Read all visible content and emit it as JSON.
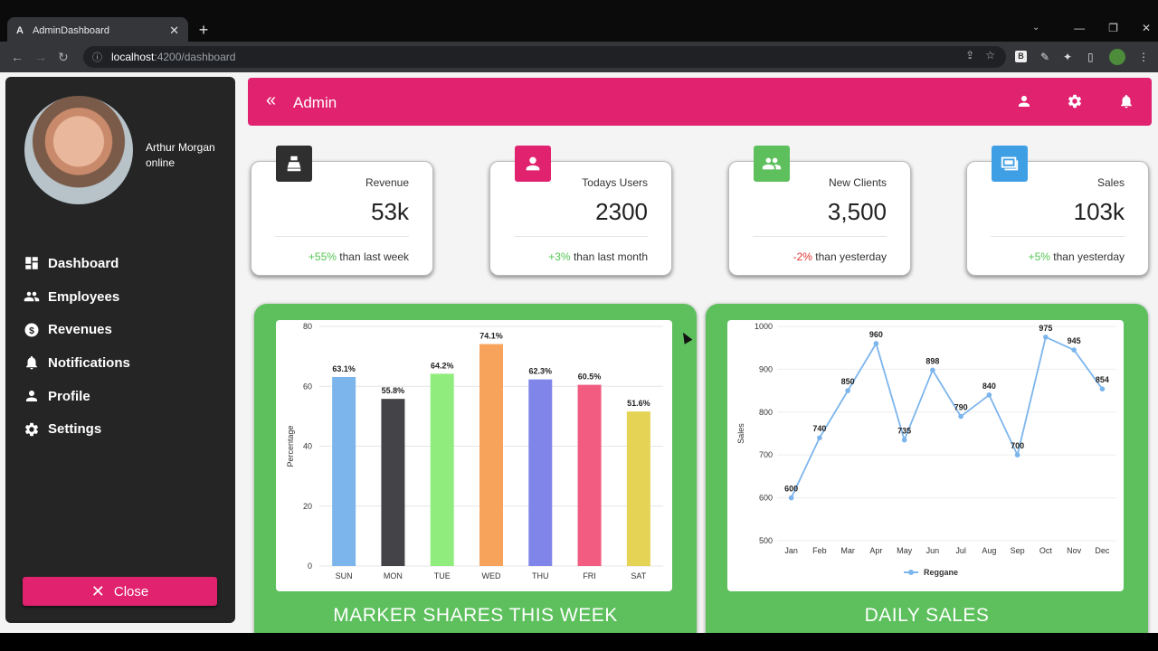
{
  "browser": {
    "tab_title": "AdminDashboard",
    "tab_favicon": "A",
    "url_host": "localhost",
    "url_path": ":4200/dashboard"
  },
  "sidebar": {
    "user_name": "Arthur Morgan",
    "user_status": "online",
    "items": [
      {
        "label": "Dashboard",
        "icon": "dashboard-icon"
      },
      {
        "label": "Employees",
        "icon": "people-icon"
      },
      {
        "label": "Revenues",
        "icon": "dollar-icon"
      },
      {
        "label": "Notifications",
        "icon": "bell-icon"
      },
      {
        "label": "Profile",
        "icon": "person-icon"
      },
      {
        "label": "Settings",
        "icon": "gear-icon"
      }
    ],
    "close_label": "Close"
  },
  "header": {
    "title": "Admin",
    "accent": "#e0226f"
  },
  "cards": [
    {
      "label": "Revenue",
      "value": "53k",
      "change": "+55%",
      "suffix": " than last week",
      "trend": "up",
      "color": "#2f2f2f"
    },
    {
      "label": "Todays Users",
      "value": "2300",
      "change": "+3%",
      "suffix": " than last month",
      "trend": "up",
      "color": "#e0226f"
    },
    {
      "label": "New Clients",
      "value": "3,500",
      "change": "-2%",
      "suffix": " than yesterday",
      "trend": "down",
      "color": "#5dc05d"
    },
    {
      "label": "Sales",
      "value": "103k",
      "change": "+5%",
      "suffix": " than yesterday",
      "trend": "up",
      "color": "#3f9fe5"
    }
  ],
  "charts": {
    "bar_title": "MARKER SHARES THIS WEEK",
    "line_title": "DAILY SALES"
  },
  "chart_data": [
    {
      "type": "bar",
      "categories": [
        "SUN",
        "MON",
        "TUE",
        "WED",
        "THU",
        "FRI",
        "SAT"
      ],
      "values": [
        63.1,
        55.8,
        64.2,
        74.1,
        62.3,
        60.5,
        51.6
      ],
      "data_labels": [
        "63.1%",
        "55.8%",
        "64.2%",
        "74.1%",
        "62.3%",
        "60.5%",
        "51.6%"
      ],
      "colors": [
        "#7cb5ec",
        "#434348",
        "#90ed7d",
        "#f7a35c",
        "#8085e9",
        "#f15c80",
        "#e4d354"
      ],
      "ylabel": "Percentage",
      "ylim": [
        0,
        80
      ],
      "yticks": [
        0,
        20,
        40,
        60,
        80
      ],
      "grid": true
    },
    {
      "type": "line",
      "categories": [
        "Jan",
        "Feb",
        "Mar",
        "Apr",
        "May",
        "Jun",
        "Jul",
        "Aug",
        "Sep",
        "Oct",
        "Nov",
        "Dec"
      ],
      "series": [
        {
          "name": "Reggane",
          "values": [
            600,
            740,
            850,
            960,
            735,
            898,
            790,
            840,
            700,
            975,
            945,
            854
          ],
          "color": "#7cb5ec"
        }
      ],
      "ylabel": "Sales",
      "ylim": [
        500,
        1000
      ],
      "yticks": [
        500,
        600,
        700,
        800,
        900,
        1000
      ],
      "legend": "bottom-center",
      "grid": true
    }
  ]
}
